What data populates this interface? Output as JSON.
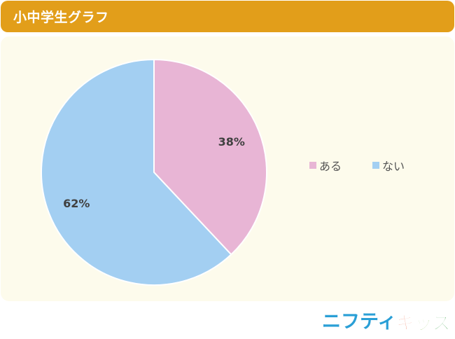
{
  "header": {
    "title": "小中学生グラフ"
  },
  "chart_data": {
    "type": "pie",
    "title": "",
    "slices": [
      {
        "label": "ある",
        "value": 38,
        "display": "38%",
        "color": "#e8b5d5"
      },
      {
        "label": "ない",
        "value": 62,
        "display": "62%",
        "color": "#a3cff2"
      }
    ],
    "start_angle": "12 o'clock, clockwise",
    "legend_placement": "right"
  },
  "brand": {
    "prefix": "ニフティ",
    "suffix": "キッズ",
    "colors": {
      "prefix": "#2a9fd6",
      "ki": "#e94b22",
      "tsu": "#6cb52d",
      "zu": "#2e9b3a"
    }
  }
}
